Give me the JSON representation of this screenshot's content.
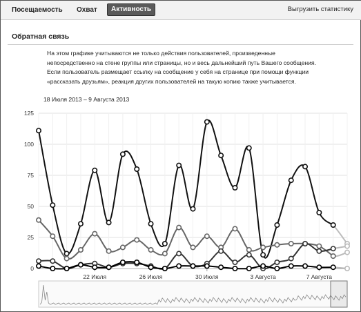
{
  "tabs": [
    {
      "label": "Посещаемость",
      "active": false
    },
    {
      "label": "Охват",
      "active": false
    },
    {
      "label": "Активность",
      "active": true
    }
  ],
  "export_label": "Выгрузить статистику",
  "section": {
    "title": "Обратная связь",
    "description": [
      "На этом графике учитываются не только действия пользователей, произведенные",
      "непосредственно на стене группы или страницы, но и весь дальнейший путь Вашего сообщения.",
      "Если пользователь размещает ссылку на сообщение у себя на странице при помощи функции",
      "«рассказать друзьям», реакция других пользователей на такую копию также учитывается."
    ],
    "date_range": "18 Июля 2013 – 9 Августа 2013"
  },
  "chart_data": {
    "type": "line",
    "ylim": [
      0,
      125
    ],
    "yticks": [
      0,
      25,
      50,
      75,
      100,
      125
    ],
    "x": [
      0,
      1,
      2,
      3,
      4,
      5,
      6,
      7,
      8,
      9,
      10,
      11,
      12,
      13,
      14,
      15,
      16,
      17,
      18,
      19,
      20,
      21,
      22
    ],
    "xtick_labels": [
      {
        "index": 4,
        "label": "22 Июля"
      },
      {
        "index": 8,
        "label": "26 Июля"
      },
      {
        "index": 12,
        "label": "30 Июля"
      },
      {
        "index": 16,
        "label": "3 Августа"
      },
      {
        "index": 20,
        "label": "7 Августа"
      }
    ],
    "series": [
      {
        "color": "#111111",
        "values": [
          111,
          51,
          12,
          36,
          79,
          37,
          92,
          80,
          36,
          20,
          83,
          48,
          118,
          91,
          65,
          97,
          11,
          35,
          71,
          82,
          45,
          35,
          20
        ]
      },
      {
        "color": "#666666",
        "values": [
          39,
          26,
          8,
          15,
          28,
          14,
          17,
          23,
          15,
          12,
          33,
          17,
          26,
          17,
          32,
          15,
          17,
          19,
          20,
          20,
          18,
          10,
          13
        ]
      },
      {
        "color": "#333333",
        "values": [
          6,
          6,
          0,
          3,
          4,
          1,
          4,
          4,
          2,
          0,
          12,
          2,
          4,
          14,
          5,
          11,
          0,
          5,
          8,
          20,
          14,
          16,
          18
        ]
      },
      {
        "color": "#000000",
        "values": [
          2,
          0,
          0,
          3,
          1,
          1,
          5,
          5,
          1,
          0,
          2,
          2,
          2,
          1,
          0,
          0,
          2,
          0,
          2,
          2,
          1,
          1,
          0
        ]
      }
    ],
    "trailing_fade_color": "#bbbbbb",
    "navigator": true
  }
}
